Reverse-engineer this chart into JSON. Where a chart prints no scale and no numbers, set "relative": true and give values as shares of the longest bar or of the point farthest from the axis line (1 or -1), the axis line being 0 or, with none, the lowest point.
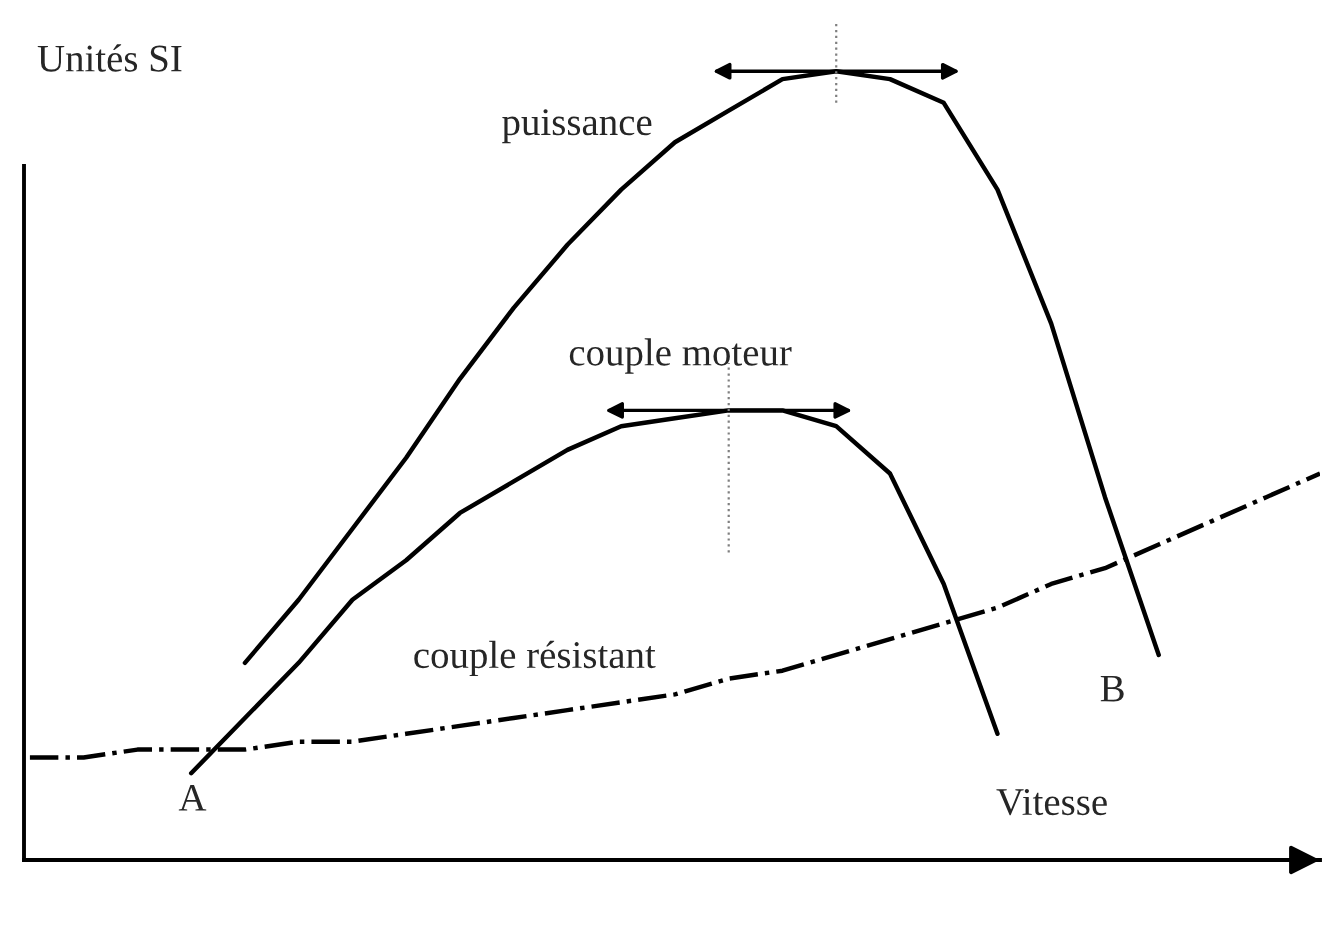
{
  "chart_data": {
    "type": "line",
    "relative": true,
    "xlabel": "Vitesse",
    "ylabel": "Unités SI",
    "legend": false,
    "marker": "none",
    "categories": [
      null,
      null,
      null,
      null,
      null,
      null,
      null,
      null,
      null,
      null,
      null,
      null,
      null,
      null,
      null,
      null,
      null,
      null,
      null,
      null,
      null,
      null,
      null,
      null,
      null
    ],
    "series": [
      {
        "name": "puissance",
        "color": "#000000",
        "line_style": "solid",
        "values": [
          null,
          null,
          null,
          null,
          0.25,
          0.33,
          0.42,
          0.51,
          0.61,
          0.7,
          0.78,
          0.85,
          0.91,
          0.95,
          0.99,
          1.0,
          0.99,
          0.96,
          0.85,
          0.68,
          0.46,
          0.26,
          null,
          null,
          null
        ]
      },
      {
        "name": "couple moteur",
        "color": "#000000",
        "line_style": "solid",
        "values": [
          null,
          null,
          null,
          0.11,
          0.18,
          0.25,
          0.33,
          0.38,
          0.44,
          0.48,
          0.52,
          0.55,
          0.56,
          0.57,
          0.57,
          0.55,
          0.49,
          0.35,
          0.16,
          null,
          null,
          null,
          null,
          null,
          null
        ]
      },
      {
        "name": "couple résistant",
        "color": "#000000",
        "line_style": "dashdot",
        "values": [
          0.13,
          0.13,
          0.14,
          0.14,
          0.14,
          0.15,
          0.15,
          0.16,
          0.17,
          0.18,
          0.19,
          0.2,
          0.21,
          0.23,
          0.24,
          0.26,
          0.28,
          0.3,
          0.32,
          0.35,
          0.37,
          0.4,
          0.43,
          0.46,
          0.49
        ]
      }
    ],
    "annotations": [
      "A",
      "B"
    ]
  }
}
